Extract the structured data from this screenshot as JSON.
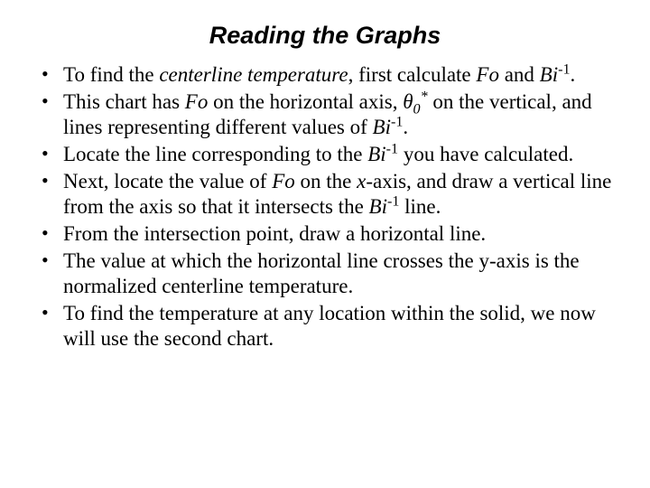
{
  "title": "Reading the Graphs",
  "bullets": {
    "b1": {
      "t1": "To find the ",
      "t2": "centerline temperature",
      "t3": ", first calculate ",
      "t4": "Fo",
      "t5": " and ",
      "t6": "Bi",
      "t7": "-1",
      "t8": "."
    },
    "b2": {
      "t1": "This chart has ",
      "t2": "Fo",
      "t3": " on the horizontal axis, ",
      "t4": "θ",
      "t5": "0",
      "t6": "*",
      "t7": " on the vertical, and lines representing different values of ",
      "t8": "Bi",
      "t9": "-1",
      "t10": "."
    },
    "b3": {
      "t1": "Locate the line corresponding to the ",
      "t2": "Bi",
      "t3": "-1",
      "t4": " you have calculated."
    },
    "b4": {
      "t1": "Next, locate the value of ",
      "t2": "Fo",
      "t3": " on the ",
      "t4": "x",
      "t5": "-axis, and draw a vertical line from the axis so that it intersects the ",
      "t6": "Bi",
      "t7": "-1",
      "t8": " line."
    },
    "b5": {
      "t1": "From the intersection point, draw a horizontal line."
    },
    "b6": {
      "t1": "The value at which the horizontal line crosses the y-axis is the normalized centerline temperature."
    },
    "b7": {
      "t1": "To find the temperature at any location within the solid, we now will use the second chart."
    }
  }
}
